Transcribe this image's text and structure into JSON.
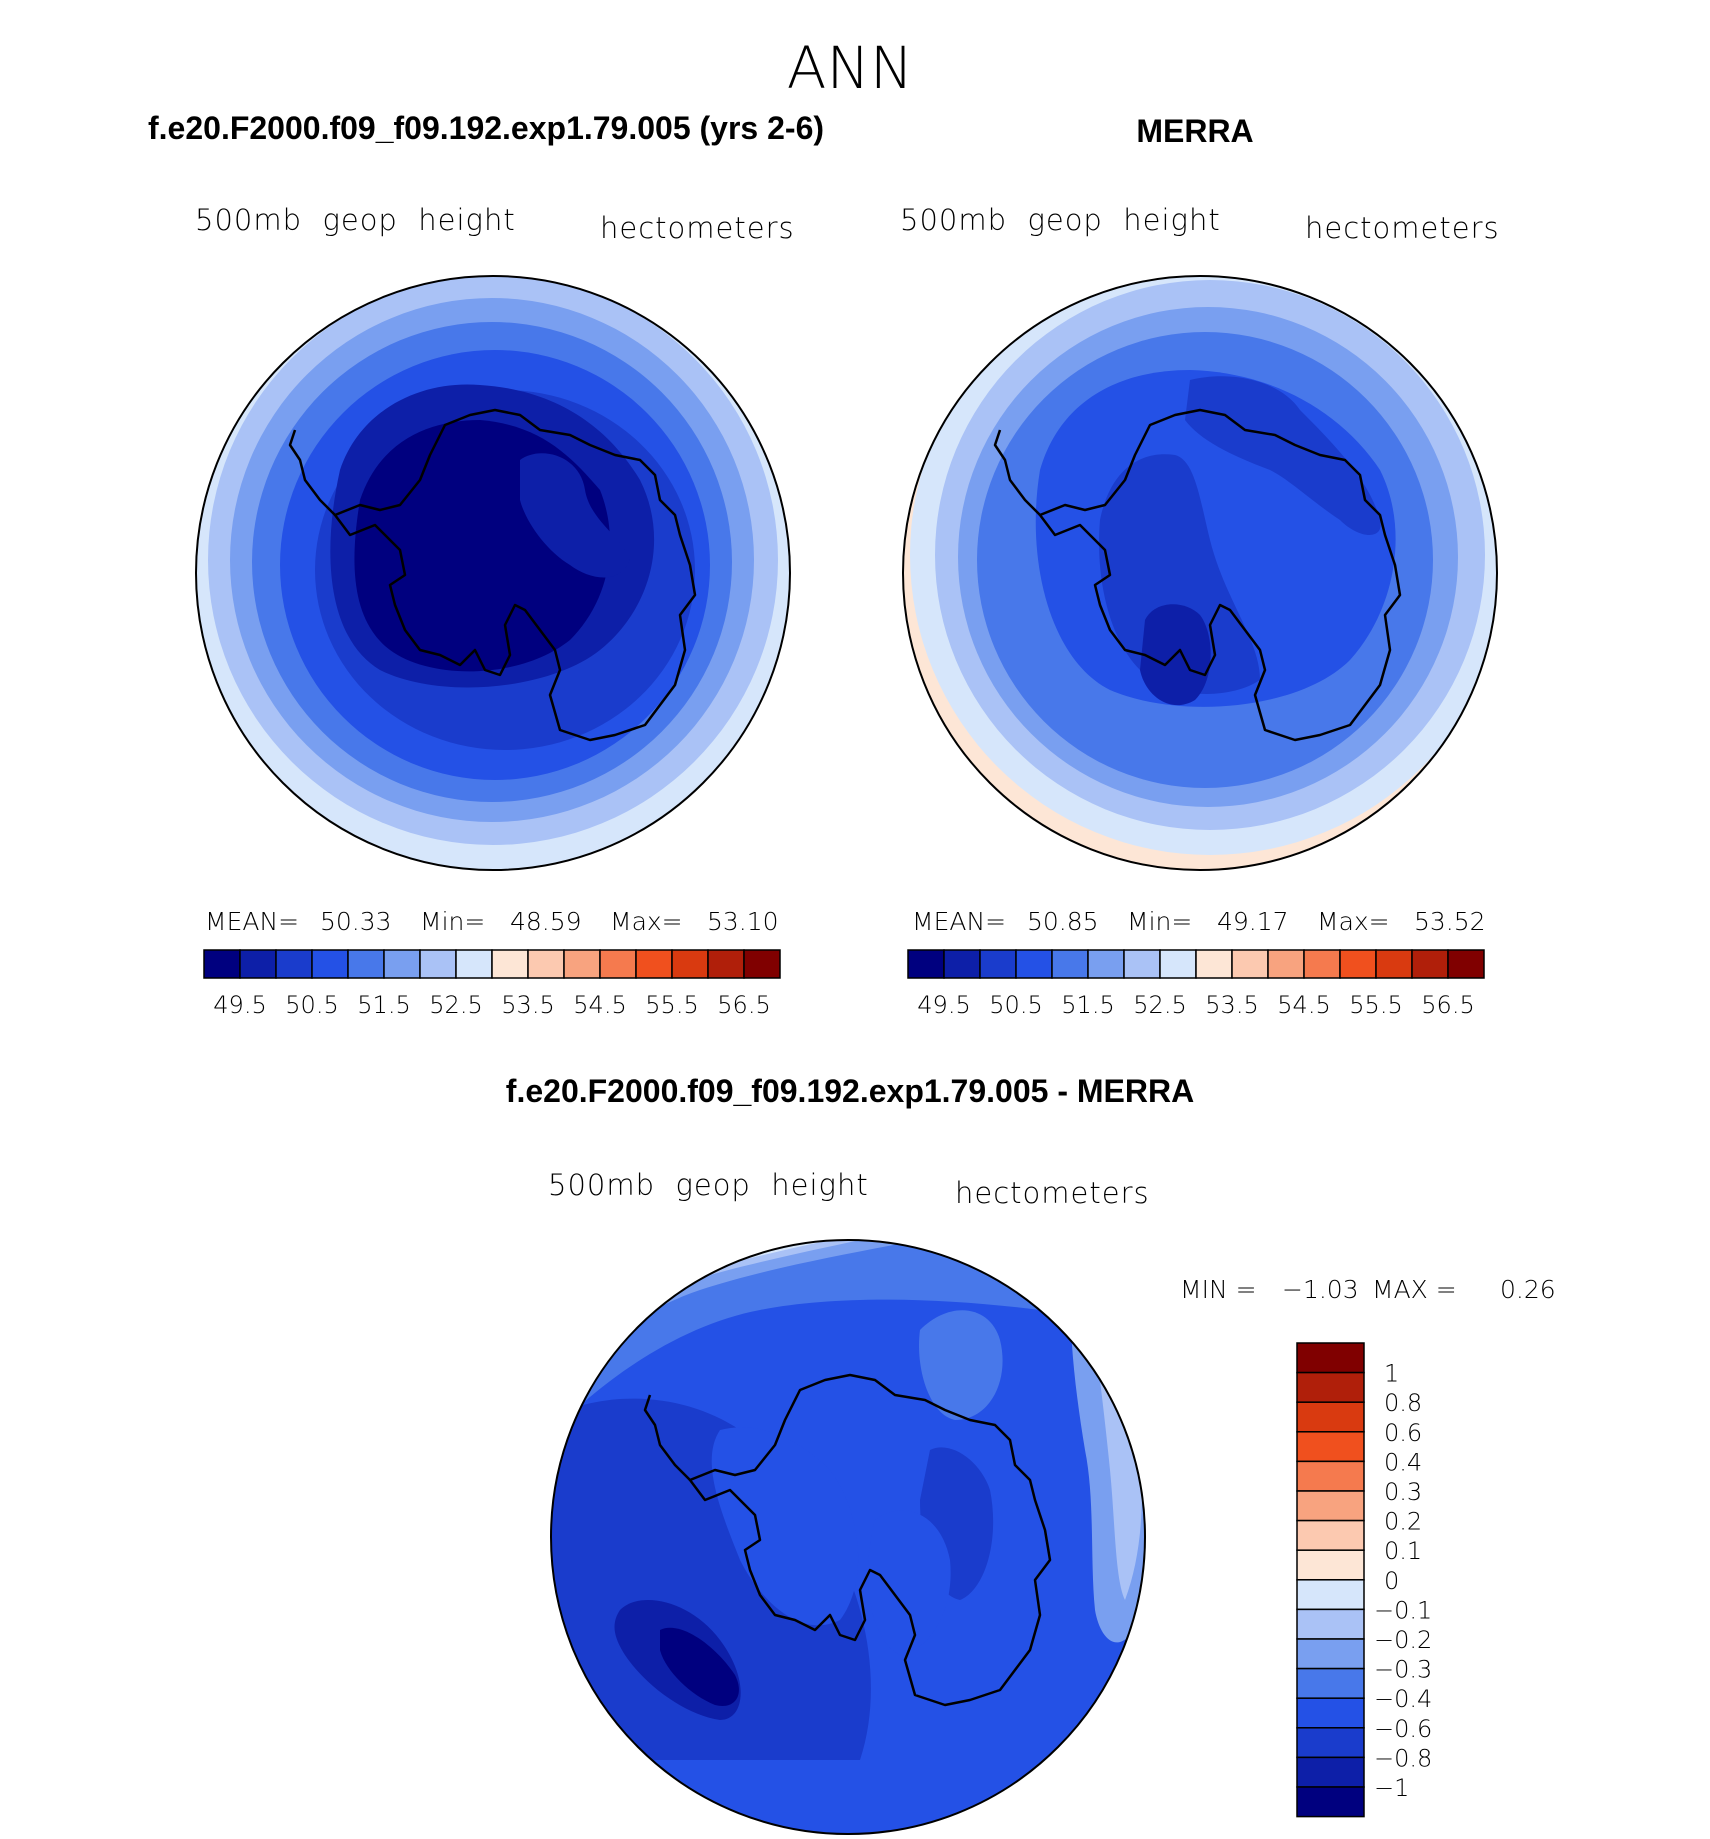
{
  "figure": {
    "title": "ANN",
    "panels": {
      "model": {
        "heading": "f.e20.F2000.f09_f09.192.exp1.79.005 (yrs 2-6)",
        "left_label": "500mb  geop  height",
        "right_label": "hectometers",
        "stats": {
          "mean_label": "MEAN=",
          "mean": "50.33",
          "min_label": "Min=",
          "min": "48.59",
          "max_label": "Max=",
          "max": "53.10"
        }
      },
      "obs": {
        "heading": "MERRA",
        "left_label": "500mb  geop  height",
        "right_label": "hectometers",
        "stats": {
          "mean_label": "MEAN=",
          "mean": "50.85",
          "min_label": "Min=",
          "min": "49.17",
          "max_label": "Max=",
          "max": "53.52"
        }
      },
      "diff": {
        "heading": "f.e20.F2000.f09_f09.192.exp1.79.005 - MERRA",
        "left_label": "500mb  geop  height",
        "right_label": "hectometers",
        "stats": {
          "min_label": "MIN =",
          "min": "−1.03",
          "max_label": "MAX =",
          "max": "0.26"
        }
      }
    }
  },
  "chart_data": [
    {
      "type": "heatmap",
      "projection": "south-polar-stereographic",
      "title": "f.e20.F2000.f09_f09.192.exp1.79.005 (yrs 2-6)",
      "variable": "500mb geop height",
      "units": "hectometers",
      "mean": 50.33,
      "min": 48.59,
      "max": 53.1,
      "contour_levels": [
        49,
        49.5,
        50,
        50.5,
        51,
        51.5,
        52,
        52.5,
        53,
        53.5,
        54,
        54.5,
        55,
        55.5,
        56,
        56.5
      ],
      "colorbar_tick_labels": [
        "49.5",
        "50.5",
        "51.5",
        "52.5",
        "53.5",
        "54.5",
        "55.5",
        "56.5"
      ],
      "colorbar_colors": [
        "#00007f",
        "#0d1fa8",
        "#1a3ccc",
        "#2451e6",
        "#4878ea",
        "#799ff0",
        "#aac2f6",
        "#d6e6fb",
        "#fde6d6",
        "#fcc9b0",
        "#f8a37f",
        "#f57a4e",
        "#f0501e",
        "#d93a10",
        "#b01f0a",
        "#800000"
      ]
    },
    {
      "type": "heatmap",
      "projection": "south-polar-stereographic",
      "title": "MERRA",
      "variable": "500mb geop height",
      "units": "hectometers",
      "mean": 50.85,
      "min": 49.17,
      "max": 53.52,
      "contour_levels": [
        49,
        49.5,
        50,
        50.5,
        51,
        51.5,
        52,
        52.5,
        53,
        53.5,
        54,
        54.5,
        55,
        55.5,
        56,
        56.5
      ],
      "colorbar_tick_labels": [
        "49.5",
        "50.5",
        "51.5",
        "52.5",
        "53.5",
        "54.5",
        "55.5",
        "56.5"
      ]
    },
    {
      "type": "heatmap",
      "projection": "south-polar-stereographic",
      "title": "f.e20.F2000.f09_f09.192.exp1.79.005 - MERRA",
      "variable": "500mb geop height",
      "units": "hectometers",
      "min": -1.03,
      "max": 0.26,
      "contour_levels": [
        -1,
        -0.8,
        -0.6,
        -0.4,
        -0.3,
        -0.2,
        -0.1,
        0,
        0.1,
        0.2,
        0.3,
        0.4,
        0.6,
        0.8,
        1
      ],
      "colorbar_tick_labels": [
        "1",
        "0.8",
        "0.6",
        "0.4",
        "0.3",
        "0.2",
        "0.1",
        "0",
        "−0.1",
        "−0.2",
        "−0.3",
        "−0.4",
        "−0.6",
        "−0.8",
        "−1"
      ],
      "colorbar_colors_top_to_bottom": [
        "#800000",
        "#b01f0a",
        "#d93a10",
        "#f0501e",
        "#f57a4e",
        "#f8a37f",
        "#fcc9b0",
        "#fde6d6",
        "#d6e6fb",
        "#aac2f6",
        "#799ff0",
        "#4878ea",
        "#2451e6",
        "#1a3ccc",
        "#0d1fa8",
        "#00007f"
      ]
    }
  ]
}
